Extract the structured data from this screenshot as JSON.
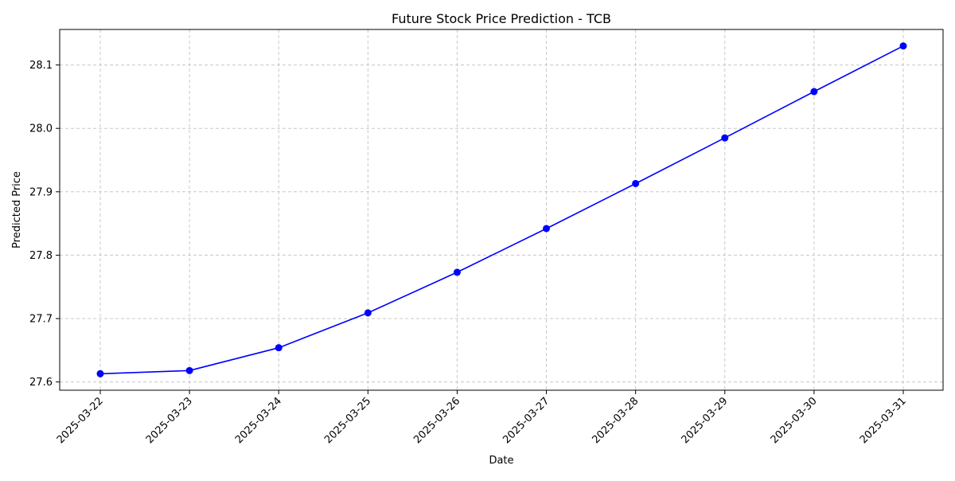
{
  "chart_data": {
    "type": "line",
    "title": "Future Stock Price Prediction - TCB",
    "xlabel": "Date",
    "ylabel": "Predicted Price",
    "x": [
      "2025-03-22",
      "2025-03-23",
      "2025-03-24",
      "2025-03-25",
      "2025-03-26",
      "2025-03-27",
      "2025-03-28",
      "2025-03-29",
      "2025-03-30",
      "2025-03-31"
    ],
    "series": [
      {
        "values": [
          27.613,
          27.618,
          27.654,
          27.709,
          27.773,
          27.842,
          27.913,
          27.985,
          28.058,
          28.13
        ],
        "color": "#0000ff",
        "marker": "circle"
      }
    ],
    "yticks": [
      27.6,
      27.7,
      27.8,
      27.9,
      28.0,
      28.1
    ],
    "ytick_labels": [
      "27.6",
      "27.7",
      "27.8",
      "27.9",
      "28.0",
      "28.1"
    ],
    "ylim": [
      27.587,
      28.156
    ],
    "grid": true,
    "grid_style": "dashed",
    "grid_color": "#c8c8c8",
    "xtick_rotation": 45
  }
}
